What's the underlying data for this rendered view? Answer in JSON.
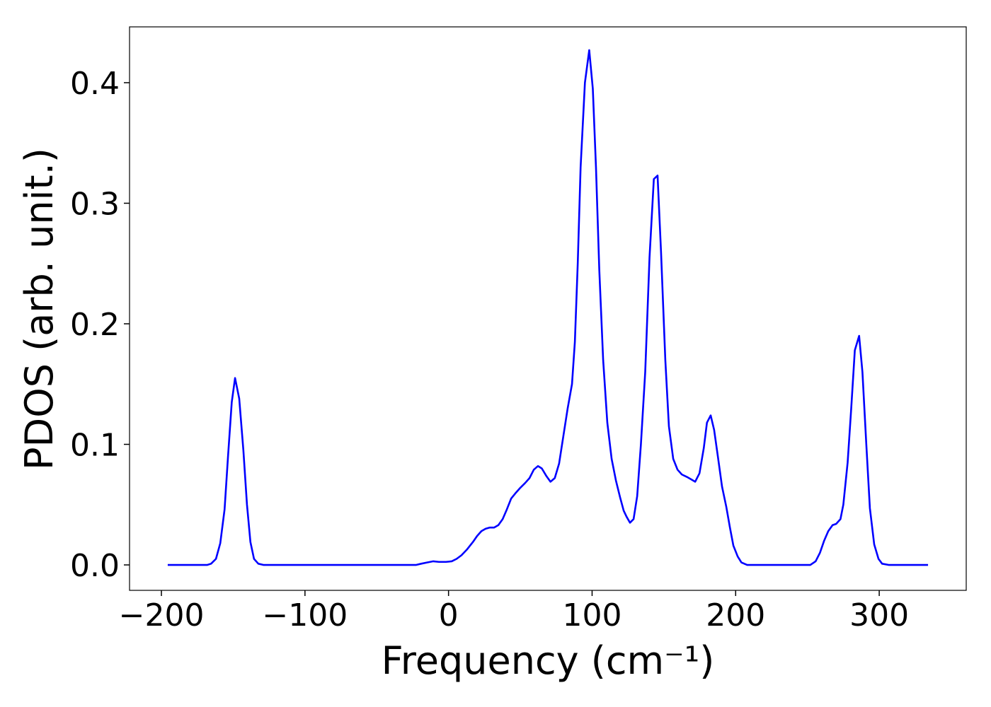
{
  "chart_data": {
    "type": "line",
    "x_label": "Frequency (cm⁻¹)",
    "y_label": "PDOS (arb. unit.)",
    "xlim": [
      -222.2,
      360.6
    ],
    "ylim": [
      -0.0211,
      0.4463
    ],
    "xticks": [
      {
        "value": -200,
        "label": "−200"
      },
      {
        "value": -100,
        "label": "−100"
      },
      0,
      100,
      200,
      300
    ],
    "yticks": [
      {
        "value": 0,
        "label": "0.0"
      },
      0.1,
      0.2,
      0.3,
      0.4
    ],
    "grid": false,
    "series": [
      {
        "color": "#0000ff",
        "x": [
          -195.6,
          -180,
          -168,
          -165.4,
          -162,
          -159,
          -156,
          -153.6,
          -151,
          -148.7,
          -145.8,
          -142.9,
          -140.4,
          -138,
          -135.5,
          -132.5,
          -129,
          -100,
          -50,
          -22.5,
          -19,
          -15,
          -10.6,
          -6.7,
          -1.8,
          2.2,
          5.6,
          9,
          13,
          17,
          19.9,
          22.9,
          25.8,
          28.8,
          31.8,
          34.7,
          37.7,
          40.6,
          43.6,
          47,
          50,
          53.4,
          56.4,
          59.4,
          62.3,
          65,
          68,
          71,
          74,
          77,
          80,
          83,
          86,
          88,
          90,
          92,
          95,
          98,
          100.5,
          102.7,
          105,
          107.7,
          110.6,
          113.6,
          116.6,
          119.5,
          122,
          124,
          126.4,
          128.9,
          131.4,
          134,
          137,
          140,
          143,
          145.6,
          148,
          151,
          153.5,
          156.5,
          159.5,
          162.5,
          166,
          169,
          171.8,
          174.8,
          177.8,
          180,
          182.6,
          185,
          187.6,
          190.5,
          193.5,
          196,
          198.4,
          201.4,
          204,
          208,
          230,
          252,
          255.7,
          258.7,
          261.6,
          264.5,
          267.5,
          270,
          273,
          275,
          278,
          280.5,
          283,
          286,
          288.3,
          291,
          293.5,
          296.5,
          299.5,
          302,
          306.5,
          320,
          334
        ],
        "values": [
          0,
          0,
          0,
          0.001,
          0.005,
          0.018,
          0.046,
          0.09,
          0.135,
          0.155,
          0.138,
          0.095,
          0.05,
          0.019,
          0.005,
          0.001,
          0,
          0,
          0,
          0,
          0.001,
          0.002,
          0.003,
          0.0025,
          0.0025,
          0.003,
          0.005,
          0.008,
          0.013,
          0.019,
          0.024,
          0.028,
          0.03,
          0.031,
          0.031,
          0.033,
          0.038,
          0.046,
          0.055,
          0.06,
          0.064,
          0.068,
          0.072,
          0.079,
          0.082,
          0.08,
          0.074,
          0.069,
          0.072,
          0.084,
          0.107,
          0.13,
          0.15,
          0.185,
          0.25,
          0.33,
          0.4,
          0.427,
          0.395,
          0.33,
          0.245,
          0.17,
          0.118,
          0.088,
          0.07,
          0.056,
          0.045,
          0.04,
          0.035,
          0.038,
          0.057,
          0.1,
          0.16,
          0.255,
          0.32,
          0.323,
          0.26,
          0.17,
          0.115,
          0.088,
          0.079,
          0.075,
          0.073,
          0.071,
          0.069,
          0.076,
          0.097,
          0.118,
          0.124,
          0.112,
          0.09,
          0.065,
          0.048,
          0.031,
          0.016,
          0.007,
          0.002,
          0,
          0,
          0,
          0.003,
          0.01,
          0.02,
          0.028,
          0.033,
          0.034,
          0.038,
          0.05,
          0.085,
          0.13,
          0.178,
          0.19,
          0.16,
          0.1,
          0.047,
          0.017,
          0.005,
          0.001,
          0,
          0,
          0
        ]
      }
    ]
  }
}
